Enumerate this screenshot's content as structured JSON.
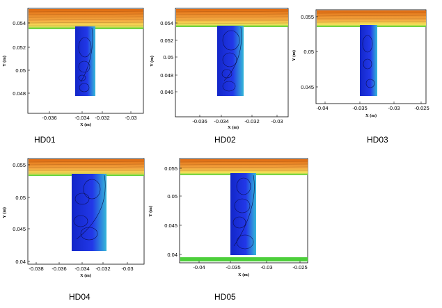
{
  "panels": [
    {
      "label": "HD01",
      "x_axis": {
        "title": "X (m)",
        "ticks": [
          "-0.036",
          "-0.034",
          "-0.032",
          "-0.03"
        ]
      },
      "y_axis": {
        "title": "Y (m)",
        "ticks": [
          "0.054",
          "0.052",
          "0.05",
          "0.048"
        ]
      }
    },
    {
      "label": "HD02",
      "x_axis": {
        "title": "X (m)",
        "ticks": [
          "-0.036",
          "-0.034",
          "-0.032",
          "-0.03"
        ]
      },
      "y_axis": {
        "title": "Y (m)",
        "ticks": [
          "0.054",
          "0.052",
          "0.05",
          "0.048",
          "0.046"
        ]
      }
    },
    {
      "label": "HD03",
      "x_axis": {
        "title": "X (m)",
        "ticks": [
          "-0.04",
          "-0.035",
          "-0.03",
          "-0.025"
        ]
      },
      "y_axis": {
        "title": "Y (m)",
        "ticks": [
          "0.055",
          "0.05",
          "0.045"
        ]
      }
    },
    {
      "label": "HD04",
      "x_axis": {
        "title": "X (m)",
        "ticks": [
          "-0.038",
          "-0.036",
          "-0.034",
          "-0.032",
          "-0.03"
        ]
      },
      "y_axis": {
        "title": "Y (m)",
        "ticks": [
          "0.055",
          "0.05",
          "0.045",
          "0.04"
        ]
      }
    },
    {
      "label": "HD05",
      "x_axis": {
        "title": "X (m)",
        "ticks": [
          "-0.04",
          "-0.035",
          "-0.03",
          "-0.025"
        ]
      },
      "y_axis": {
        "title": "Y (m)",
        "ticks": [
          "0.055",
          "0.05",
          "0.045",
          "0.04"
        ]
      }
    }
  ],
  "colors": {
    "channel_top": "#e06a10",
    "channel_mid": "#f4a640",
    "channel_bottom": "#f3e25a",
    "interface": "#4ccf3a",
    "cavity": "#1c2fe0",
    "cavity_dark": "#0d1690",
    "shear_layer": "#35b8d8"
  }
}
